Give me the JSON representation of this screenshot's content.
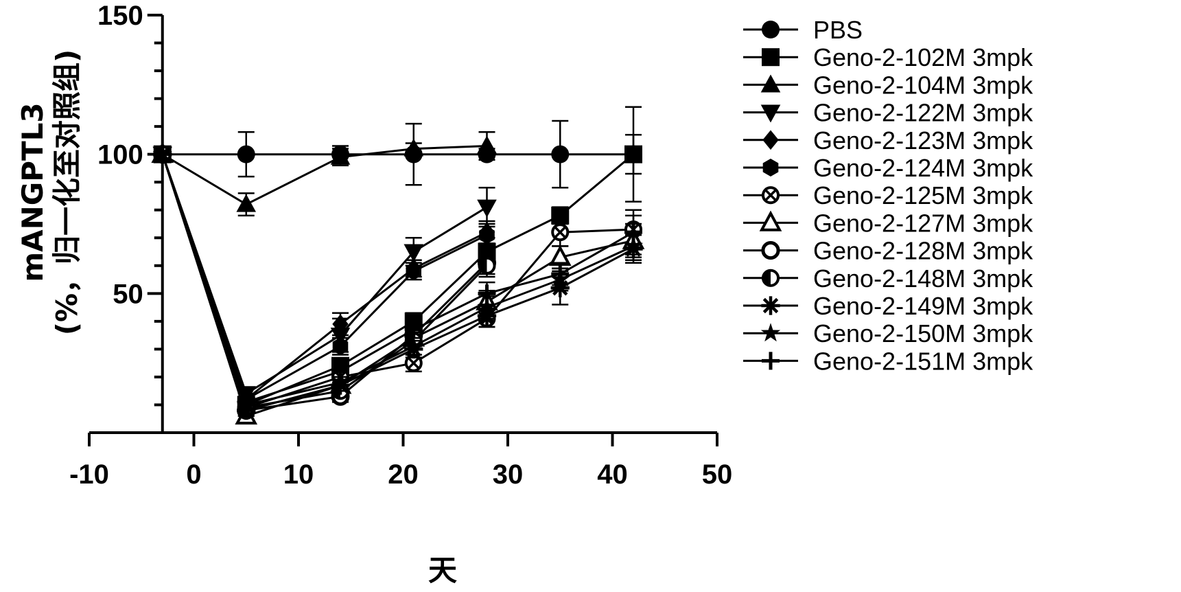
{
  "chart_data": {
    "type": "line",
    "xlabel": "天",
    "ylabel_line1": "mANGPTL3",
    "ylabel_line2": "(%，归一化至对照组)",
    "xlim": [
      -10,
      50
    ],
    "ylim": [
      0,
      150
    ],
    "x_ticks": [
      -10,
      0,
      10,
      20,
      30,
      40,
      50
    ],
    "y_ticks": [
      50,
      100,
      150
    ],
    "y_minor_step": 10,
    "grid": false,
    "legend_position": "right",
    "x": [
      -3,
      5,
      14,
      21,
      28,
      35,
      42
    ],
    "series": [
      {
        "name": "PBS",
        "marker": "circle",
        "values": [
          100,
          100,
          100,
          100,
          100,
          100,
          100
        ],
        "err": [
          0,
          8,
          3,
          11,
          2,
          12,
          17
        ]
      },
      {
        "name": "Geno-2-102M 3mpk",
        "marker": "square",
        "values": [
          100,
          10,
          24,
          40,
          65,
          78,
          100
        ],
        "err": [
          0,
          2,
          2,
          3,
          5,
          3,
          7
        ]
      },
      {
        "name": "Geno-2-104M 3mpk",
        "marker": "triangle",
        "values": [
          100,
          82,
          99,
          102,
          103,
          null,
          null
        ],
        "err": [
          0,
          4,
          3,
          2,
          5,
          0,
          0
        ]
      },
      {
        "name": "Geno-2-122M 3mpk",
        "marker": "triangle-down",
        "values": [
          100,
          14,
          35,
          65,
          81,
          null,
          null
        ],
        "err": [
          0,
          2,
          6,
          5,
          7,
          0,
          0
        ]
      },
      {
        "name": "Geno-2-123M 3mpk",
        "marker": "diamond",
        "values": [
          100,
          12,
          39,
          59,
          72,
          null,
          null
        ],
        "err": [
          0,
          2,
          4,
          3,
          4,
          0,
          0
        ]
      },
      {
        "name": "Geno-2-124M 3mpk",
        "marker": "hexagon",
        "values": [
          100,
          12,
          31,
          58,
          71,
          null,
          null
        ],
        "err": [
          0,
          2,
          3,
          3,
          4,
          0,
          0
        ]
      },
      {
        "name": "Geno-2-125M 3mpk",
        "marker": "circle-x",
        "values": [
          100,
          9,
          20,
          25,
          41,
          72,
          73
        ],
        "err": [
          0,
          2,
          2,
          3,
          3,
          5,
          5
        ]
      },
      {
        "name": "Geno-2-127M 3mpk",
        "marker": "triangle-open",
        "values": [
          100,
          6,
          17,
          34,
          47,
          63,
          69
        ],
        "err": [
          0,
          2,
          2,
          3,
          4,
          4,
          6
        ]
      },
      {
        "name": "Geno-2-128M 3mpk",
        "marker": "circle-open",
        "values": [
          100,
          8,
          13,
          35,
          61,
          null,
          null
        ],
        "err": [
          0,
          2,
          2,
          3,
          4,
          0,
          0
        ]
      },
      {
        "name": "Geno-2-148M 3mpk",
        "marker": "circle-half",
        "values": [
          100,
          9,
          15,
          33,
          60,
          null,
          null
        ],
        "err": [
          0,
          2,
          2,
          3,
          4,
          0,
          0
        ]
      },
      {
        "name": "Geno-2-149M 3mpk",
        "marker": "asterisk",
        "values": [
          100,
          8,
          17,
          30,
          42,
          52,
          66
        ],
        "err": [
          0,
          2,
          2,
          3,
          4,
          6,
          5
        ]
      },
      {
        "name": "Geno-2-150M 3mpk",
        "marker": "star",
        "values": [
          100,
          10,
          18,
          31,
          45,
          55,
          67
        ],
        "err": [
          0,
          2,
          2,
          3,
          4,
          4,
          5
        ]
      },
      {
        "name": "Geno-2-151M 3mpk",
        "marker": "plus",
        "values": [
          100,
          11,
          22,
          37,
          50,
          57,
          72
        ],
        "err": [
          0,
          2,
          2,
          3,
          4,
          4,
          8
        ]
      }
    ]
  }
}
